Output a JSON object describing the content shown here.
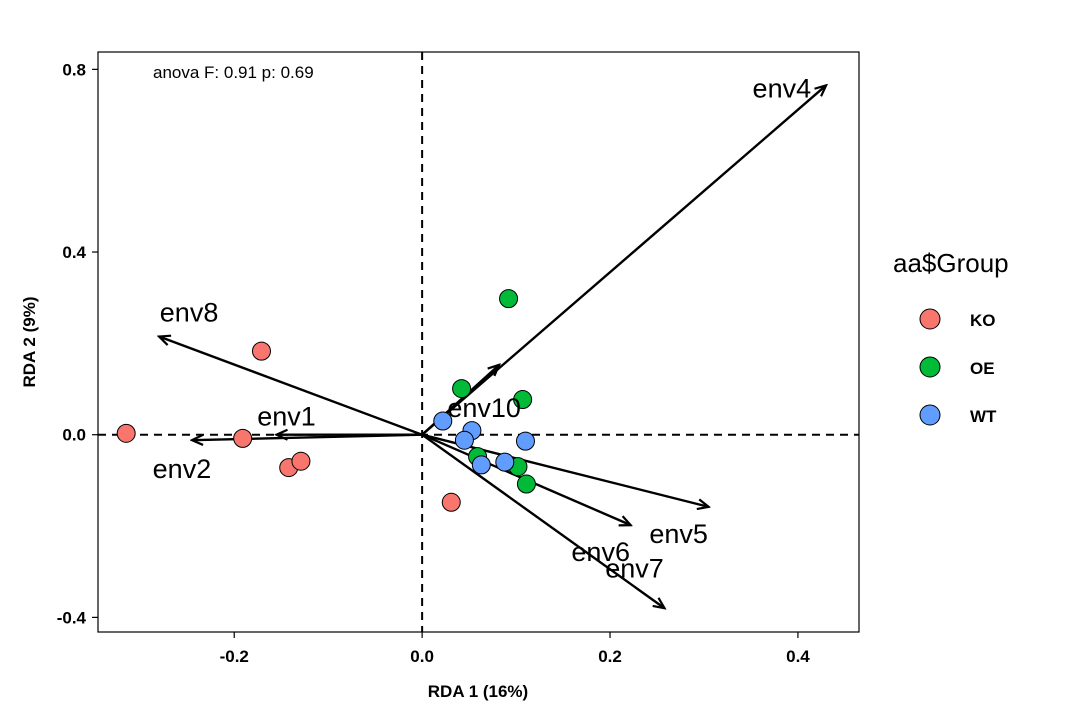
{
  "chart_data": {
    "type": "scatter",
    "xlabel": "RDA 1 (16%)",
    "ylabel": "RDA 2 (9%)",
    "xlim": [
      -0.345,
      0.465
    ],
    "ylim": [
      -0.432,
      0.838
    ],
    "x_ticks": [
      -0.2,
      0.0,
      0.2,
      0.4
    ],
    "x_tick_labels": [
      "-0.2",
      "0.0",
      "0.2",
      "0.4"
    ],
    "y_ticks": [
      -0.4,
      0.0,
      0.4,
      0.8
    ],
    "y_tick_labels": [
      "-0.4",
      "0.0",
      "0.4",
      "0.8"
    ],
    "grid": false,
    "reference_lines": {
      "x": 0,
      "y": 0,
      "style": "dashed"
    },
    "annotation": "anova F: 0.91 p: 0.69",
    "legend": {
      "title": "aa$Group",
      "position": "right",
      "entries": [
        {
          "label": "KO",
          "color": "#F8766D"
        },
        {
          "label": "OE",
          "color": "#00BA38"
        },
        {
          "label": "WT",
          "color": "#619CFF"
        }
      ]
    },
    "series": [
      {
        "name": "KO",
        "color": "#F8766D",
        "points": [
          {
            "x": -0.315,
            "y": 0.003
          },
          {
            "x": -0.191,
            "y": -0.008
          },
          {
            "x": -0.171,
            "y": 0.183
          },
          {
            "x": -0.142,
            "y": -0.072
          },
          {
            "x": -0.129,
            "y": -0.058
          },
          {
            "x": 0.031,
            "y": -0.148
          }
        ]
      },
      {
        "name": "OE",
        "color": "#00BA38",
        "points": [
          {
            "x": 0.092,
            "y": 0.298
          },
          {
            "x": 0.042,
            "y": 0.101
          },
          {
            "x": 0.107,
            "y": 0.077
          },
          {
            "x": 0.059,
            "y": -0.048
          },
          {
            "x": 0.102,
            "y": -0.07
          },
          {
            "x": 0.111,
            "y": -0.108
          }
        ]
      },
      {
        "name": "WT",
        "color": "#619CFF",
        "points": [
          {
            "x": 0.022,
            "y": 0.03
          },
          {
            "x": 0.053,
            "y": 0.009
          },
          {
            "x": 0.045,
            "y": -0.012
          },
          {
            "x": 0.11,
            "y": -0.014
          },
          {
            "x": 0.088,
            "y": -0.06
          },
          {
            "x": 0.063,
            "y": -0.066
          }
        ]
      }
    ],
    "vectors": [
      {
        "label": "env1",
        "x": -0.155,
        "y": 0.0
      },
      {
        "label": "env2",
        "x": -0.245,
        "y": -0.012
      },
      {
        "label": "env4",
        "x": 0.43,
        "y": 0.765
      },
      {
        "label": "env5",
        "x": 0.305,
        "y": -0.158
      },
      {
        "label": "env6",
        "x": 0.222,
        "y": -0.198
      },
      {
        "label": "env7",
        "x": 0.258,
        "y": -0.38
      },
      {
        "label": "env8",
        "x": -0.28,
        "y": 0.215
      },
      {
        "label": "env10",
        "x": 0.082,
        "y": 0.153
      }
    ]
  }
}
